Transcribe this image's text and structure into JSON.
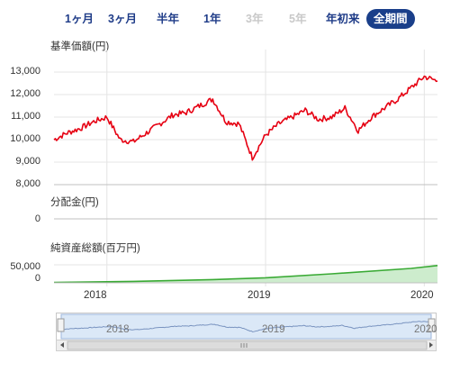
{
  "tabs": [
    {
      "label": "1ヶ月",
      "state": "normal"
    },
    {
      "label": "3ヶ月",
      "state": "normal"
    },
    {
      "label": "半年",
      "state": "normal"
    },
    {
      "label": "1年",
      "state": "normal"
    },
    {
      "label": "3年",
      "state": "disabled"
    },
    {
      "label": "5年",
      "state": "disabled"
    },
    {
      "label": "年初来",
      "state": "normal"
    },
    {
      "label": "全期間",
      "state": "active"
    }
  ],
  "colors": {
    "nav_line": "#e60012",
    "assets_fill": "#cdeccd",
    "assets_line": "#3aaa35",
    "grid": "#e4e4e4",
    "tab_active_bg": "#1a3f8a",
    "navigator_fill": "#dbe8f7",
    "navigator_line": "#7a94c0"
  },
  "chart_data": [
    {
      "type": "line",
      "title": "基準価額(円)",
      "ylim": [
        8000,
        14000
      ],
      "y_ticks": [
        "13,000",
        "12,000",
        "11,000",
        "10,000",
        "9,000",
        "8,000"
      ],
      "series": [
        {
          "x": [
            "2017-09",
            "2017-10",
            "2017-11",
            "2017-12",
            "2018-01",
            "2018-02",
            "2018-03",
            "2018-04",
            "2018-05",
            "2018-06",
            "2018-07",
            "2018-08",
            "2018-09",
            "2018-10",
            "2018-11",
            "2018-12",
            "2019-01",
            "2019-02",
            "2019-03",
            "2019-04",
            "2019-05",
            "2019-06",
            "2019-07",
            "2019-08",
            "2019-09",
            "2019-10",
            "2019-11",
            "2019-12",
            "2020-01",
            "2020-02"
          ],
          "values": [
            10000,
            10300,
            10500,
            10800,
            11000,
            10000,
            9900,
            10300,
            10700,
            11100,
            11200,
            11500,
            11800,
            10800,
            10700,
            9200,
            10200,
            10700,
            11000,
            11300,
            10900,
            11000,
            11400,
            10400,
            11000,
            11400,
            11800,
            12300,
            12800,
            12600
          ]
        }
      ]
    },
    {
      "type": "bar",
      "title": "分配金(円)",
      "y_ticks": [
        "0"
      ],
      "series": [
        {
          "values": [
            0
          ]
        }
      ]
    },
    {
      "type": "area",
      "title": "純資産総額(百万円)",
      "ylim": [
        0,
        80000
      ],
      "y_ticks": [
        "50,000",
        "0"
      ],
      "x_ticks": [
        "2018",
        "2019",
        "2020"
      ],
      "series": [
        {
          "x": [
            "2017-09",
            "2018-03",
            "2018-09",
            "2019-01",
            "2019-06",
            "2019-12",
            "2020-02"
          ],
          "values": [
            1000,
            4000,
            9000,
            14000,
            25000,
            40000,
            48000
          ]
        }
      ]
    }
  ],
  "navigator": {
    "x_ticks": [
      "2018",
      "2019",
      "2020"
    ]
  }
}
